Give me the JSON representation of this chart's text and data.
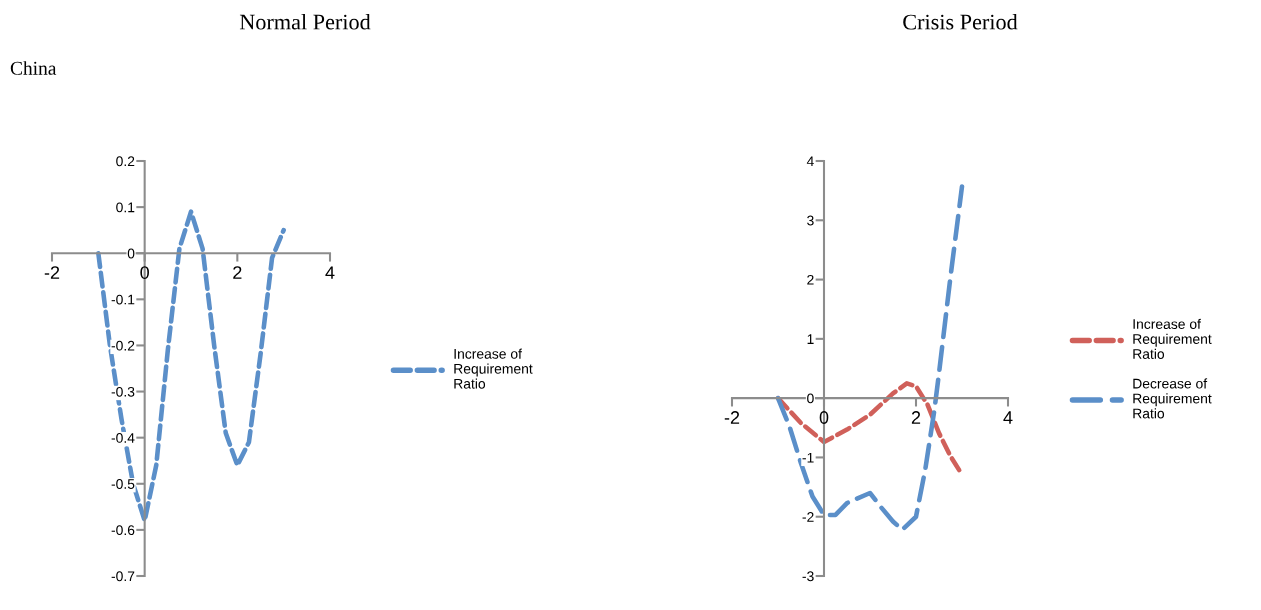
{
  "chart_data": [
    {
      "type": "line",
      "title": "Normal Period",
      "subtitle": "China",
      "legend": "right",
      "line_style": "dashed",
      "marker": "none",
      "xlim": [
        -2,
        4
      ],
      "xticks": [
        -2,
        0,
        2,
        4
      ],
      "ylim": [
        -0.7,
        0.2
      ],
      "yticks": [
        -0.7,
        -0.6,
        -0.5,
        -0.4,
        -0.3,
        -0.2,
        -0.1,
        0,
        0.1,
        0.2
      ],
      "series": [
        {
          "name": "Increase of Requirement Ratio",
          "color": "#5b8fc9",
          "x": [
            -1.0,
            -0.75,
            -0.5,
            -0.25,
            0,
            0.25,
            0.5,
            0.75,
            1.0,
            1.25,
            1.5,
            1.75,
            2.0,
            2.25,
            2.5,
            2.75,
            3.0
          ],
          "values": [
            0.0,
            -0.2,
            -0.36,
            -0.5,
            -0.58,
            -0.46,
            -0.21,
            0.01,
            0.09,
            0.01,
            -0.2,
            -0.39,
            -0.46,
            -0.41,
            -0.22,
            -0.01,
            0.05
          ]
        }
      ]
    },
    {
      "type": "line",
      "title": "Crisis Period",
      "legend": "right",
      "line_style": "dashed",
      "marker": "none",
      "xlim": [
        -2,
        4
      ],
      "xticks": [
        -2,
        0,
        2,
        4
      ],
      "ylim": [
        -3,
        4
      ],
      "yticks": [
        -3,
        -2,
        -1,
        0,
        1,
        2,
        3,
        4
      ],
      "series": [
        {
          "name": "Increase of Requirement Ratio",
          "color": "#d0605a",
          "x": [
            -1.0,
            -0.5,
            0,
            0.5,
            1.0,
            1.5,
            1.8,
            2.0,
            2.25,
            2.5,
            2.75,
            3.0
          ],
          "values": [
            0.0,
            -0.42,
            -0.74,
            -0.53,
            -0.28,
            0.08,
            0.25,
            0.2,
            -0.11,
            -0.59,
            -0.98,
            -1.29
          ]
        },
        {
          "name": "Decrease of Requirement Ratio",
          "color": "#5b8fc9",
          "x": [
            -1.0,
            -0.75,
            -0.5,
            -0.25,
            0,
            0.25,
            0.5,
            1.0,
            1.25,
            1.5,
            1.7,
            2.0,
            2.2,
            2.4,
            2.5,
            2.75,
            3.0
          ],
          "values": [
            0.0,
            -0.48,
            -1.1,
            -1.66,
            -1.97,
            -1.97,
            -1.77,
            -1.6,
            -1.85,
            -2.08,
            -2.22,
            -2.0,
            -1.21,
            -0.2,
            0.42,
            2.05,
            3.57
          ],
          "line_style": "long_dashed"
        }
      ]
    }
  ]
}
